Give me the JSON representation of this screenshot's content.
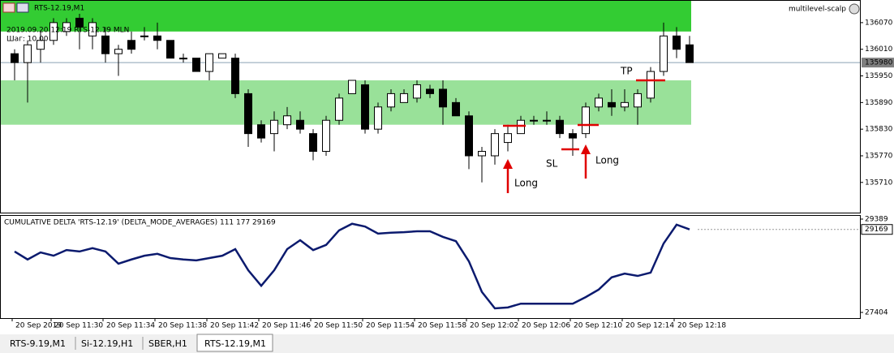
{
  "chart_data": [
    {
      "type": "candlestick",
      "title": "RTS-12.19,M1",
      "subtitle": "2019.09.20 12:19  RTS-12.19 MLN",
      "step_label": "Шаг: 10.00",
      "indicator": "multilevel-scalp",
      "open": [
        136000,
        135980,
        136010,
        136030,
        136050,
        136080,
        136040,
        136040,
        136000,
        136030,
        136040,
        136040,
        136030,
        135990,
        135990,
        135960,
        135990,
        135990,
        135910,
        135840,
        135820,
        135840,
        135850,
        135820,
        135780,
        135850,
        135910,
        135930,
        135830,
        135880,
        135890,
        135900,
        135920,
        135920,
        135890,
        135860,
        135770,
        135770,
        135800,
        135820,
        135850,
        135850,
        135850,
        135820,
        135820,
        135880,
        135890,
        135880,
        135880,
        135900,
        135960,
        136040,
        136020
      ],
      "high": [
        136010,
        136030,
        136050,
        136080,
        136080,
        136090,
        136080,
        136060,
        136020,
        136050,
        136060,
        136070,
        136030,
        136000,
        135990,
        136000,
        136000,
        136000,
        135920,
        135850,
        135870,
        135880,
        135870,
        135830,
        135860,
        135910,
        135940,
        135940,
        135890,
        135920,
        135920,
        135940,
        135930,
        135940,
        135900,
        135870,
        135790,
        135830,
        135840,
        135860,
        135860,
        135870,
        135860,
        135830,
        135890,
        135910,
        135920,
        135920,
        135920,
        135970,
        136070,
        136060,
        136040
      ],
      "low": [
        135940,
        135890,
        135980,
        136020,
        136040,
        136010,
        136010,
        135980,
        135950,
        136000,
        136030,
        136010,
        135990,
        135980,
        135960,
        135940,
        135990,
        135900,
        135790,
        135800,
        135780,
        135830,
        135820,
        135760,
        135770,
        135840,
        135910,
        135820,
        135820,
        135870,
        135890,
        135890,
        135900,
        135840,
        135860,
        135740,
        135710,
        135750,
        135780,
        135820,
        135840,
        135840,
        135810,
        135770,
        135810,
        135870,
        135860,
        135870,
        135840,
        135890,
        135950,
        135990,
        135980
      ],
      "close": [
        135980,
        136020,
        136030,
        136070,
        136070,
        136060,
        136070,
        136000,
        136010,
        136010,
        136040,
        136030,
        135990,
        135990,
        135960,
        136000,
        136000,
        135910,
        135820,
        135810,
        135850,
        135860,
        135830,
        135780,
        135850,
        135900,
        135940,
        135830,
        135880,
        135910,
        135910,
        135930,
        135910,
        135880,
        135860,
        135770,
        135780,
        135820,
        135820,
        135850,
        135850,
        135850,
        135820,
        135810,
        135880,
        135900,
        135880,
        135890,
        135910,
        135960,
        136040,
        136010,
        135980
      ],
      "ylim": [
        135642,
        136121
      ],
      "yticks": [
        136070,
        136010,
        135950,
        135890,
        135830,
        135770,
        135710
      ],
      "current_price": 135980,
      "zones": [
        {
          "from": 136050,
          "to": 136121,
          "color": "#33cc33"
        },
        {
          "from": 135840,
          "to": 135940,
          "color": "#99e199"
        }
      ],
      "annotations": [
        {
          "text": "Long"
        },
        {
          "text": "SL"
        },
        {
          "text": "Long"
        },
        {
          "text": "TP"
        }
      ],
      "colors": {
        "up": "#ffffff",
        "down": "#000000",
        "annotation": "#e00000"
      }
    },
    {
      "type": "line",
      "title": "CUMULATIVE DELTA 'RTS-12.19' (DELTA_MODE_AVERAGES) 111 177 29169",
      "categories": [
        "20 Sep 2019",
        null,
        null,
        "20 Sep 11:30",
        null,
        null,
        null,
        "20 Sep 11:34",
        null,
        null,
        null,
        "20 Sep 11:38",
        null,
        null,
        null,
        "20 Sep 11:42",
        null,
        null,
        null,
        "20 Sep 11:46",
        null,
        null,
        null,
        "20 Sep 11:50",
        null,
        null,
        null,
        "20 Sep 11:54",
        null,
        null,
        null,
        "20 Sep 11:58",
        null,
        null,
        null,
        "20 Sep 12:02",
        null,
        null,
        null,
        "20 Sep 12:06",
        null,
        null,
        null,
        "20 Sep 12:10",
        null,
        null,
        null,
        "20 Sep 12:14",
        null,
        null,
        null,
        "20 Sep 12:18",
        null
      ],
      "values": [
        28700,
        28530,
        28680,
        28610,
        28730,
        28700,
        28770,
        28700,
        28440,
        28530,
        28610,
        28650,
        28560,
        28530,
        28510,
        28560,
        28610,
        28750,
        28300,
        27970,
        28300,
        28750,
        28940,
        28730,
        28840,
        29150,
        29290,
        29230,
        29080,
        29100,
        29110,
        29130,
        29130,
        29010,
        28920,
        28490,
        27840,
        27490,
        27510,
        27590,
        27590,
        27590,
        27590,
        27590,
        27730,
        27890,
        28150,
        28230,
        28180,
        28250,
        28870,
        29270,
        29169
      ],
      "color": "#0b1a6e",
      "ylim": [
        27283,
        29475
      ],
      "yticks": [
        29389,
        27404
      ],
      "current_value": 29169
    }
  ],
  "tabs": [
    "RTS-9.19,M1",
    "Si-12.19,H1",
    "SBER,H1",
    "RTS-12.19,M1"
  ]
}
